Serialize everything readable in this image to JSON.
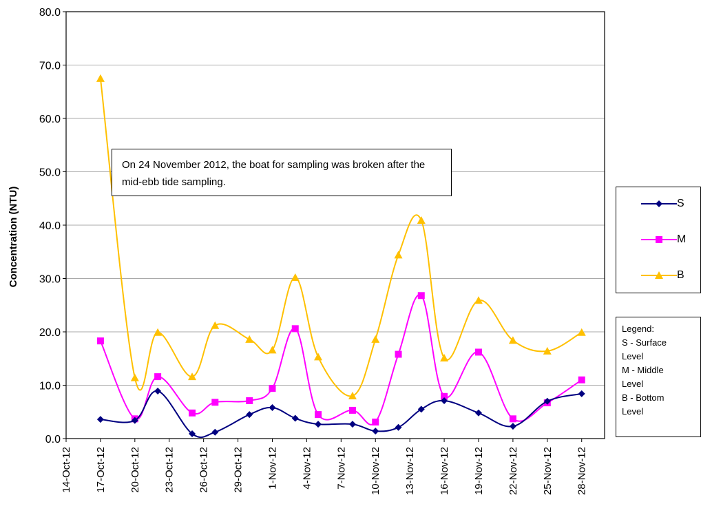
{
  "chart_data": {
    "type": "line",
    "title": "",
    "xlabel": "",
    "ylabel": "Concentration (NTU)",
    "ylim": [
      0,
      80
    ],
    "yticks": [
      "0.0",
      "10.0",
      "20.0",
      "30.0",
      "40.0",
      "50.0",
      "60.0",
      "70.0",
      "80.0"
    ],
    "xlim": [
      "2012-10-14",
      "2012-11-30"
    ],
    "xticks": [
      {
        "date": "2012-10-14",
        "label": "14-Oct-12"
      },
      {
        "date": "2012-10-17",
        "label": "17-Oct-12"
      },
      {
        "date": "2012-10-20",
        "label": "20-Oct-12"
      },
      {
        "date": "2012-10-23",
        "label": "23-Oct-12"
      },
      {
        "date": "2012-10-26",
        "label": "26-Oct-12"
      },
      {
        "date": "2012-10-29",
        "label": "29-Oct-12"
      },
      {
        "date": "2012-11-01",
        "label": "1-Nov-12"
      },
      {
        "date": "2012-11-04",
        "label": "4-Nov-12"
      },
      {
        "date": "2012-11-07",
        "label": "7-Nov-12"
      },
      {
        "date": "2012-11-10",
        "label": "10-Nov-12"
      },
      {
        "date": "2012-11-13",
        "label": "13-Nov-12"
      },
      {
        "date": "2012-11-16",
        "label": "16-Nov-12"
      },
      {
        "date": "2012-11-19",
        "label": "19-Nov-12"
      },
      {
        "date": "2012-11-22",
        "label": "22-Nov-12"
      },
      {
        "date": "2012-11-25",
        "label": "25-Nov-12"
      },
      {
        "date": "2012-11-28",
        "label": "28-Nov-12"
      }
    ],
    "grid": true,
    "legend_position": "right",
    "series": [
      {
        "name": "S",
        "color": "#000080",
        "marker": "diamond",
        "points": [
          {
            "x": "2012-10-17",
            "y": 3.6
          },
          {
            "x": "2012-10-20",
            "y": 3.4
          },
          {
            "x": "2012-10-22",
            "y": 8.9
          },
          {
            "x": "2012-10-25",
            "y": 0.9
          },
          {
            "x": "2012-10-27",
            "y": 1.2
          },
          {
            "x": "2012-10-30",
            "y": 4.5
          },
          {
            "x": "2012-11-01",
            "y": 5.8
          },
          {
            "x": "2012-11-03",
            "y": 3.8
          },
          {
            "x": "2012-11-05",
            "y": 2.7
          },
          {
            "x": "2012-11-08",
            "y": 2.7
          },
          {
            "x": "2012-11-10",
            "y": 1.4
          },
          {
            "x": "2012-11-12",
            "y": 2.1
          },
          {
            "x": "2012-11-14",
            "y": 5.5
          },
          {
            "x": "2012-11-16",
            "y": 7.1
          },
          {
            "x": "2012-11-19",
            "y": 4.8
          },
          {
            "x": "2012-11-22",
            "y": 2.3
          },
          {
            "x": "2012-11-25",
            "y": 7.0
          },
          {
            "x": "2012-11-28",
            "y": 8.4
          }
        ]
      },
      {
        "name": "M",
        "color": "#FF00FF",
        "marker": "square",
        "points": [
          {
            "x": "2012-10-17",
            "y": 18.3
          },
          {
            "x": "2012-10-20",
            "y": 3.7
          },
          {
            "x": "2012-10-22",
            "y": 11.6
          },
          {
            "x": "2012-10-25",
            "y": 4.8
          },
          {
            "x": "2012-10-27",
            "y": 6.8
          },
          {
            "x": "2012-10-30",
            "y": 7.1
          },
          {
            "x": "2012-11-01",
            "y": 9.4
          },
          {
            "x": "2012-11-03",
            "y": 20.6
          },
          {
            "x": "2012-11-05",
            "y": 4.5
          },
          {
            "x": "2012-11-08",
            "y": 5.3
          },
          {
            "x": "2012-11-10",
            "y": 3.1
          },
          {
            "x": "2012-11-12",
            "y": 15.8
          },
          {
            "x": "2012-11-14",
            "y": 26.8
          },
          {
            "x": "2012-11-16",
            "y": 7.9
          },
          {
            "x": "2012-11-19",
            "y": 16.2
          },
          {
            "x": "2012-11-22",
            "y": 3.7
          },
          {
            "x": "2012-11-25",
            "y": 6.7
          },
          {
            "x": "2012-11-28",
            "y": 11.0
          }
        ]
      },
      {
        "name": "B",
        "color": "#FFC000",
        "marker": "triangle",
        "points": [
          {
            "x": "2012-10-17",
            "y": 67.5
          },
          {
            "x": "2012-10-20",
            "y": 11.4
          },
          {
            "x": "2012-10-22",
            "y": 19.9
          },
          {
            "x": "2012-10-25",
            "y": 11.6
          },
          {
            "x": "2012-10-27",
            "y": 21.2
          },
          {
            "x": "2012-10-30",
            "y": 18.6
          },
          {
            "x": "2012-11-01",
            "y": 16.6
          },
          {
            "x": "2012-11-03",
            "y": 30.2
          },
          {
            "x": "2012-11-05",
            "y": 15.3
          },
          {
            "x": "2012-11-08",
            "y": 8.0
          },
          {
            "x": "2012-11-10",
            "y": 18.6
          },
          {
            "x": "2012-11-12",
            "y": 34.4
          },
          {
            "x": "2012-11-14",
            "y": 40.9
          },
          {
            "x": "2012-11-16",
            "y": 15.1
          },
          {
            "x": "2012-11-19",
            "y": 25.9
          },
          {
            "x": "2012-11-22",
            "y": 18.4
          },
          {
            "x": "2012-11-25",
            "y": 16.4
          },
          {
            "x": "2012-11-28",
            "y": 19.9
          }
        ]
      }
    ],
    "annotation": "On 24 November 2012, the boat for sampling was broken after the mid-ebb tide sampling.",
    "legend_note": [
      "Legend:",
      "S - Surface",
      "Level",
      "M - Middle",
      "Level",
      "B - Bottom",
      "Level"
    ]
  }
}
